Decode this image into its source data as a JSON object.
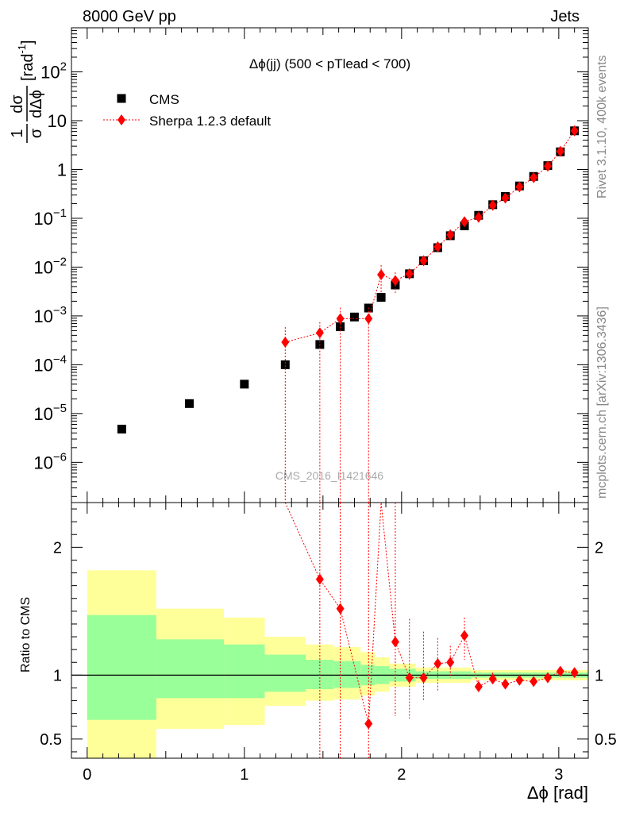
{
  "header": {
    "energy_label": "8000 GeV pp",
    "category_label": "Jets"
  },
  "side_labels": {
    "rivet": "Rivet 3.1.10,  400k events",
    "mcplots": "mcplots.cern.ch [arXiv:1306.3436]"
  },
  "chart_data": [
    {
      "type": "scatter",
      "title": "Δϕ(jj) (500 < pTlead <  700)",
      "watermark": "CMS_2016_I1421646",
      "xlabel": "Δϕ [rad]",
      "ylabel": "1/σ dσ/dΔϕ [rad⁻¹]",
      "ylabel_parts": {
        "frac_num": "1",
        "frac_den": "σ",
        "d_num": "dσ",
        "d_den": "dΔϕ",
        "unit": "[rad",
        "unit_exp": "-1",
        "unit_close": "]"
      },
      "xlim": [
        -0.1,
        3.1876
      ],
      "ylim": [
        1.5e-07,
        800
      ],
      "y_scale": "log",
      "y_tick_labels": [
        {
          "value": 1e-06,
          "base": "10",
          "exp": "−6"
        },
        {
          "value": 1e-05,
          "base": "10",
          "exp": "−5"
        },
        {
          "value": 0.0001,
          "base": "10",
          "exp": "−4"
        },
        {
          "value": 0.001,
          "base": "10",
          "exp": "−3"
        },
        {
          "value": 0.01,
          "base": "10",
          "exp": "−2"
        },
        {
          "value": 0.1,
          "base": "10",
          "exp": "−1"
        },
        {
          "value": 1,
          "base": "1",
          "exp": ""
        },
        {
          "value": 10,
          "base": "10",
          "exp": ""
        },
        {
          "value": 100,
          "base": "10",
          "exp": "2"
        }
      ],
      "legend_position": "top-left",
      "series": [
        {
          "name": "CMS",
          "color": "#000000",
          "marker": "square",
          "x": [
            0.22,
            0.65,
            1.0,
            1.26,
            1.48,
            1.61,
            1.7,
            1.79,
            1.87,
            1.96,
            2.05,
            2.14,
            2.23,
            2.31,
            2.4,
            2.49,
            2.58,
            2.66,
            2.75,
            2.84,
            2.93,
            3.01,
            3.1
          ],
          "values": [
            4.8e-06,
            1.6e-05,
            4e-05,
            0.0001,
            0.00026,
            0.0006,
            0.00095,
            0.00145,
            0.0024,
            0.0043,
            0.0073,
            0.0135,
            0.025,
            0.044,
            0.07,
            0.115,
            0.19,
            0.28,
            0.46,
            0.72,
            1.2,
            2.3,
            6.2
          ]
        },
        {
          "name": "Sherpa 1.2.3 default",
          "color": "#ff0000",
          "marker": "diamond",
          "line": "dotted",
          "x": [
            1.26,
            1.48,
            1.61,
            1.79,
            1.87,
            1.96,
            2.05,
            2.14,
            2.23,
            2.31,
            2.4,
            2.49,
            2.58,
            2.66,
            2.75,
            2.84,
            2.93,
            3.01,
            3.1
          ],
          "values": [
            0.00029,
            0.00045,
            0.00088,
            0.00088,
            0.007,
            0.0053,
            0.0073,
            0.0135,
            0.026,
            0.046,
            0.085,
            0.105,
            0.185,
            0.26,
            0.44,
            0.68,
            1.17,
            2.35,
            6.2
          ],
          "err_up": [
            0.0003,
            0.0003,
            0.0006,
            0.0006,
            0.004,
            0.0025,
            0.002,
            0.002,
            0.002,
            0.003,
            0.005,
            0.005,
            0.006,
            0.008,
            0.008,
            0.012,
            0.015,
            0.03,
            0.06
          ],
          "err_down_to_floor": [
            true,
            true,
            true,
            true,
            false,
            false,
            false,
            false,
            false,
            false,
            false,
            false,
            false,
            false,
            false,
            false,
            false,
            false,
            false
          ]
        }
      ]
    },
    {
      "type": "scatter",
      "ylabel": "Ratio to CMS",
      "xlabel": "Δϕ [rad]",
      "xlim": [
        -0.1,
        3.1876
      ],
      "ylim": [
        0.35,
        2.35
      ],
      "y_ticks": [
        0.5,
        1,
        2
      ],
      "y_tick_labels": [
        "0.5",
        "1",
        "2"
      ],
      "x_ticks": [
        0,
        1,
        2,
        3
      ],
      "x_tick_labels": [
        "0",
        "1",
        "2",
        "3"
      ],
      "reference_line": 1,
      "bands": {
        "yellow_color": "#ffff99",
        "green_color": "#99ff99",
        "bins": [
          {
            "xlo": 0.0,
            "xhi": 0.44,
            "y_lo": 0.35,
            "y_hi": 1.82,
            "g_lo": 0.65,
            "g_hi": 1.47
          },
          {
            "xlo": 0.44,
            "xhi": 0.87,
            "y_lo": 0.58,
            "y_hi": 1.52,
            "g_lo": 0.82,
            "g_hi": 1.28
          },
          {
            "xlo": 0.87,
            "xhi": 1.13,
            "y_lo": 0.61,
            "y_hi": 1.45,
            "g_lo": 0.82,
            "g_hi": 1.24
          },
          {
            "xlo": 1.13,
            "xhi": 1.39,
            "y_lo": 0.76,
            "y_hi": 1.3,
            "g_lo": 0.87,
            "g_hi": 1.16
          },
          {
            "xlo": 1.39,
            "xhi": 1.57,
            "y_lo": 0.8,
            "y_hi": 1.24,
            "g_lo": 0.89,
            "g_hi": 1.12
          },
          {
            "xlo": 1.57,
            "xhi": 1.74,
            "y_lo": 0.81,
            "y_hi": 1.22,
            "g_lo": 0.9,
            "g_hi": 1.11
          },
          {
            "xlo": 1.74,
            "xhi": 1.83,
            "y_lo": 0.84,
            "y_hi": 1.18,
            "g_lo": 0.92,
            "g_hi": 1.08
          },
          {
            "xlo": 1.83,
            "xhi": 1.92,
            "y_lo": 0.87,
            "y_hi": 1.14,
            "g_lo": 0.93,
            "g_hi": 1.07
          },
          {
            "xlo": 1.92,
            "xhi": 2.09,
            "y_lo": 0.91,
            "y_hi": 1.09,
            "g_lo": 0.95,
            "g_hi": 1.05
          },
          {
            "xlo": 2.09,
            "xhi": 2.44,
            "y_lo": 0.94,
            "y_hi": 1.06,
            "g_lo": 0.97,
            "g_hi": 1.03
          },
          {
            "xlo": 2.44,
            "xhi": 3.1876,
            "y_lo": 0.96,
            "y_hi": 1.04,
            "g_lo": 0.98,
            "g_hi": 1.02
          }
        ]
      },
      "series": [
        {
          "name": "Sherpa 1.2.3 default",
          "color": "#ff0000",
          "marker": "diamond",
          "line": "dotted",
          "x": [
            1.48,
            1.61,
            1.79,
            1.96,
            2.05,
            2.14,
            2.23,
            2.31,
            2.4,
            2.49,
            2.58,
            2.66,
            2.75,
            2.84,
            2.93,
            3.01,
            3.1
          ],
          "values": [
            1.75,
            1.52,
            0.62,
            1.26,
            0.98,
            0.98,
            1.09,
            1.1,
            1.31,
            0.91,
            0.97,
            0.93,
            0.96,
            0.95,
            0.98,
            1.03,
            1.02
          ],
          "err_lo": [
            0.35,
            0.35,
            0.35,
            0.68,
            0.66,
            0.8,
            0.88,
            0.98,
            1.12,
            0.86,
            0.93,
            0.9,
            0.93,
            0.93,
            0.97,
            1.01,
            1.0
          ],
          "err_hi": [
            2.35,
            2.35,
            2.35,
            2.35,
            1.44,
            1.34,
            1.29,
            1.23,
            1.45,
            0.96,
            1.02,
            0.97,
            0.99,
            0.97,
            0.99,
            1.05,
            1.04
          ]
        }
      ],
      "outgoing_points": [
        {
          "x": 1.26,
          "value": 2.9
        },
        {
          "x": 1.87,
          "value": 2.9
        }
      ]
    }
  ]
}
